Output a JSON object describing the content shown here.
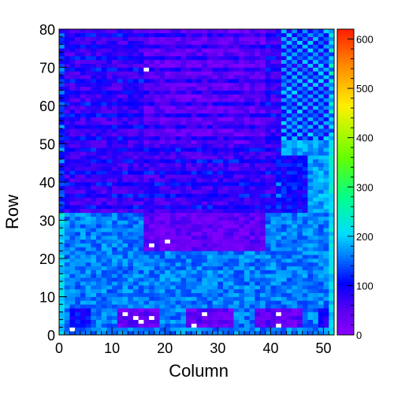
{
  "chart_data": {
    "type": "heatmap",
    "title": "",
    "xlabel": "Column",
    "ylabel": "Row",
    "xlim": [
      0,
      52
    ],
    "ylim": [
      0,
      80
    ],
    "x_ticks": [
      0,
      10,
      20,
      30,
      40,
      50
    ],
    "y_ticks": [
      0,
      10,
      20,
      30,
      40,
      50,
      60,
      70,
      80
    ],
    "colorbar": {
      "range": [
        0,
        620
      ],
      "ticks": [
        0,
        100,
        200,
        300,
        400,
        500,
        600
      ],
      "palette": "rainbow (violet low to red high)",
      "position": "right"
    },
    "grid": false,
    "z_regions": [
      {
        "x": [
          0,
          52
        ],
        "y": [
          0,
          32
        ],
        "value": 160
      },
      {
        "x": [
          0,
          52
        ],
        "y": [
          32,
          80
        ],
        "value": 65
      },
      {
        "x": [
          42,
          52
        ],
        "y": [
          32,
          80
        ],
        "value": 175
      },
      {
        "x": [
          41,
          47
        ],
        "y": [
          32,
          47
        ],
        "value": 105
      },
      {
        "x": [
          16,
          39
        ],
        "y": [
          50,
          80
        ],
        "value": 40
      },
      {
        "x": [
          16,
          39
        ],
        "y": [
          22,
          32
        ],
        "value": 40
      },
      {
        "x": [
          11,
          19
        ],
        "y": [
          2,
          7
        ],
        "value": 40
      },
      {
        "x": [
          24,
          33
        ],
        "y": [
          2,
          7
        ],
        "value": 40
      },
      {
        "x": [
          37,
          46
        ],
        "y": [
          2,
          7
        ],
        "value": 40
      },
      {
        "x": [
          2,
          6
        ],
        "y": [
          2,
          7
        ],
        "value": 100
      },
      {
        "x": [
          49,
          51
        ],
        "y": [
          2,
          7
        ],
        "value": 100
      }
    ],
    "hot_cells": [
      {
        "x": 16,
        "y": 69,
        "value": 0
      },
      {
        "x": 20,
        "y": 24,
        "value": 0
      },
      {
        "x": 17,
        "y": 23,
        "value": 0
      },
      {
        "x": 12,
        "y": 5,
        "value": 0
      },
      {
        "x": 14,
        "y": 4,
        "value": 0
      },
      {
        "x": 15,
        "y": 3,
        "value": 0
      },
      {
        "x": 17,
        "y": 4,
        "value": 0
      },
      {
        "x": 27,
        "y": 5,
        "value": 0
      },
      {
        "x": 25,
        "y": 2,
        "value": 0
      },
      {
        "x": 41,
        "y": 5,
        "value": 0
      },
      {
        "x": 41,
        "y": 2,
        "value": 0
      },
      {
        "x": 2,
        "y": 1,
        "value": 0
      }
    ]
  }
}
